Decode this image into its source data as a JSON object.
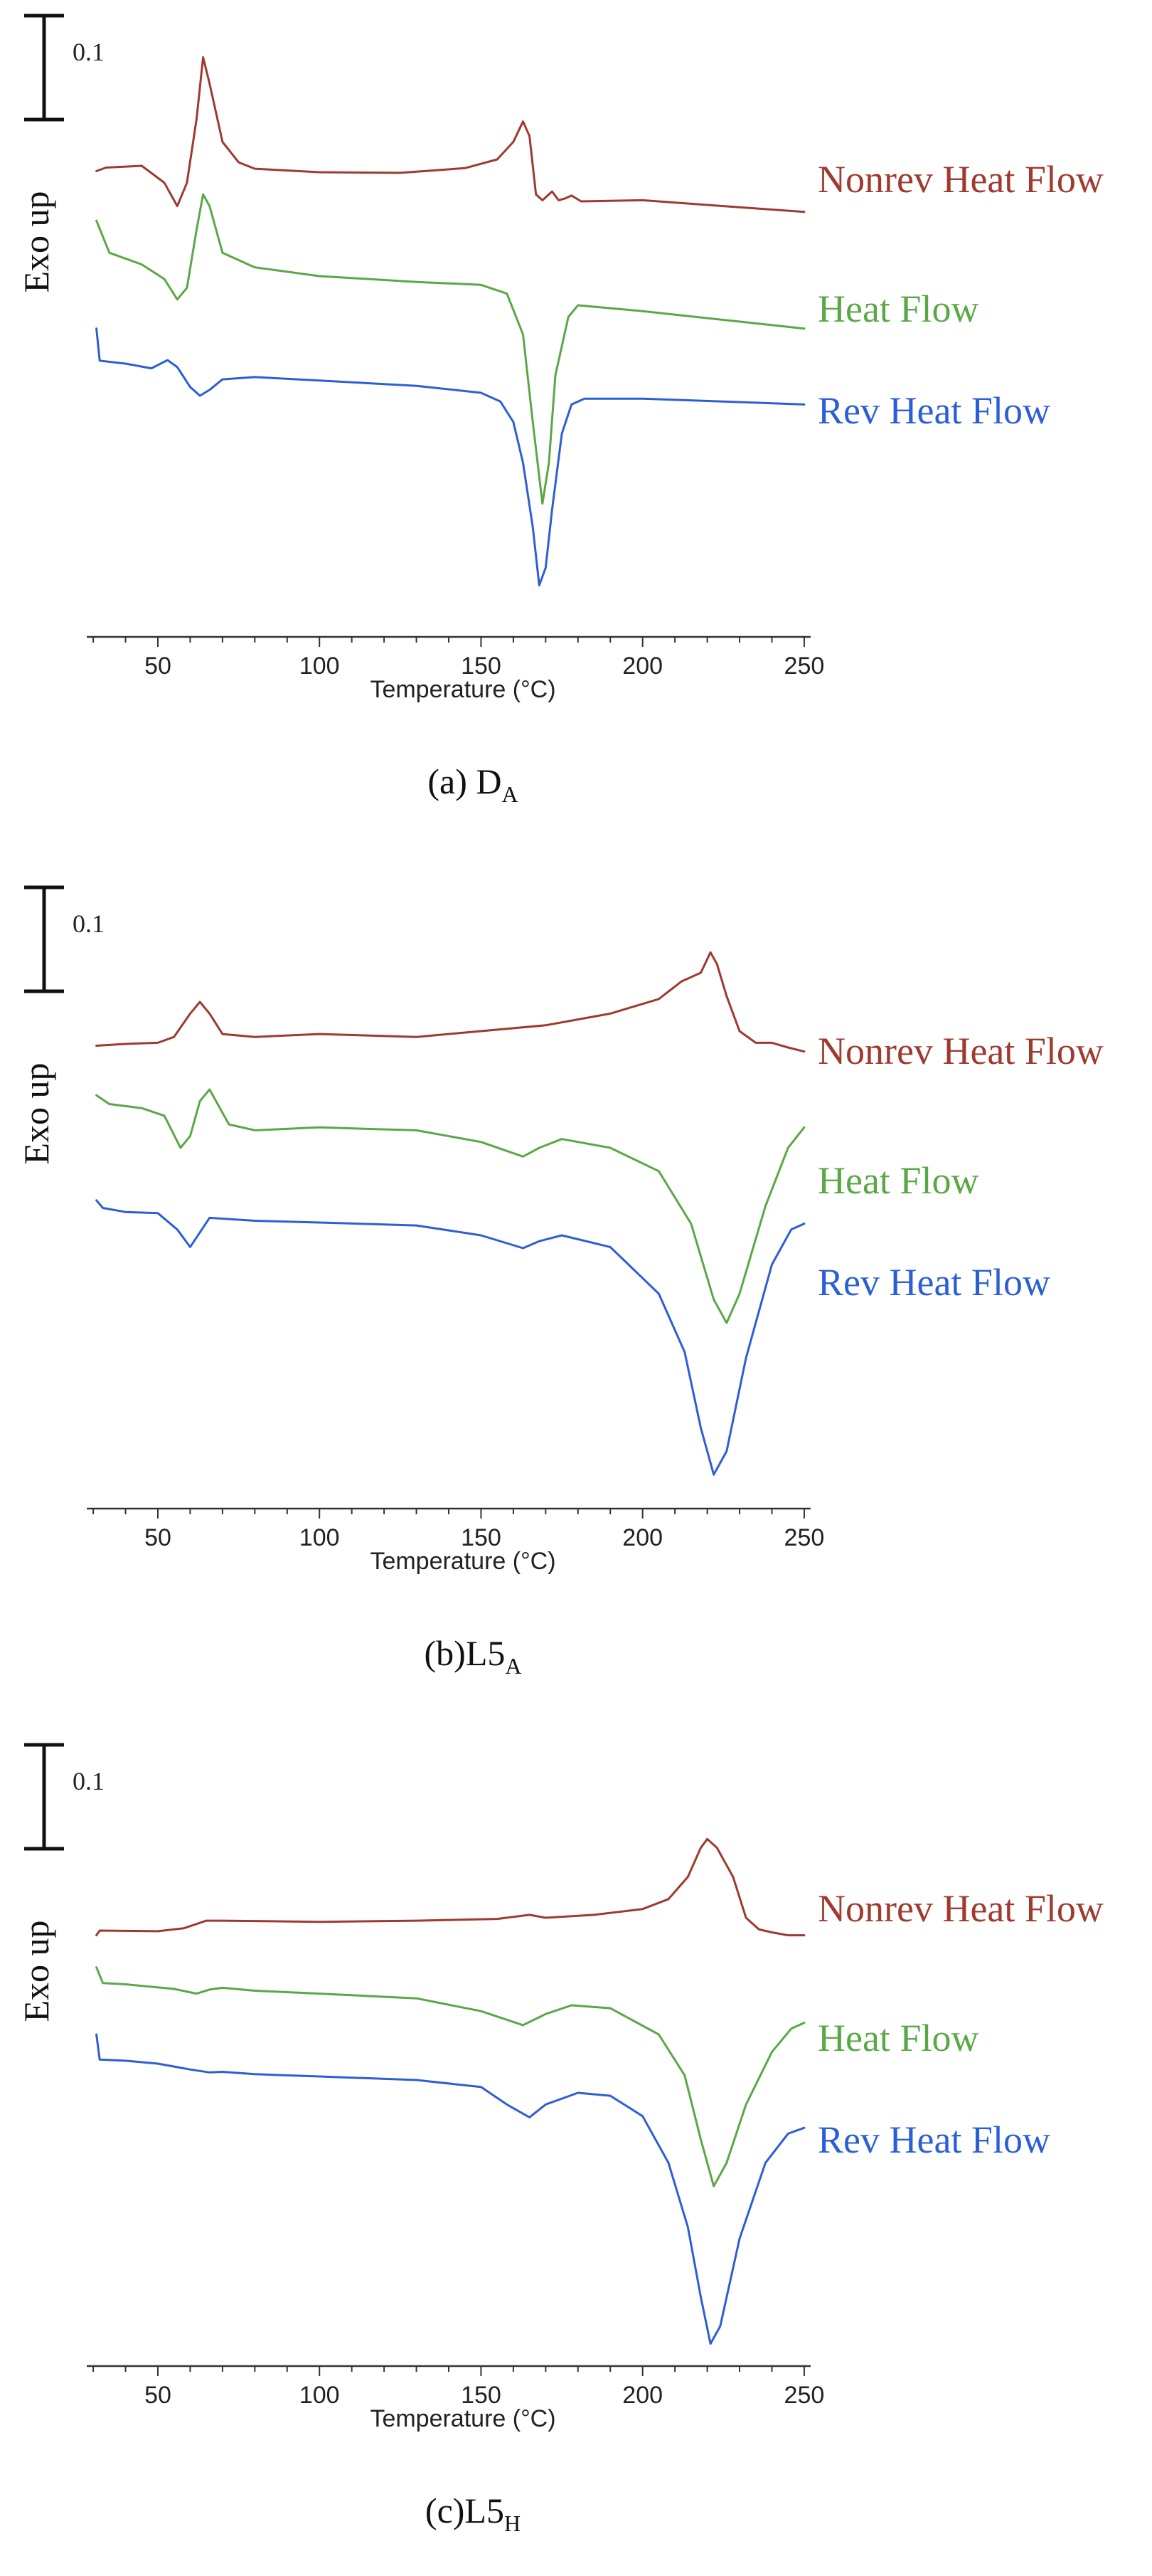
{
  "colors": {
    "nonrev": "#9e3a2e",
    "heat": "#5aa845",
    "rev": "#2c5fd6",
    "axis": "#333333"
  },
  "panels": [
    {
      "caption": {
        "main": "(a) D",
        "sub": "A"
      },
      "scale_label": "0.1",
      "ylabel": "Exo up",
      "chart_data": {
        "type": "line",
        "xlabel": "Temperature (°C)",
        "xlim": [
          28,
          252
        ],
        "ylim": [
          0,
          1
        ],
        "xticks": [
          "50",
          "100",
          "150",
          "200",
          "250"
        ],
        "series": [
          {
            "name": "Nonrev Heat Flow",
            "points": [
              [
                31,
                0.78
              ],
              [
                34,
                0.786
              ],
              [
                45,
                0.789
              ],
              [
                52,
                0.76
              ],
              [
                56,
                0.72
              ],
              [
                59,
                0.76
              ],
              [
                62,
                0.87
              ],
              [
                64,
                0.975
              ],
              [
                66,
                0.93
              ],
              [
                70,
                0.83
              ],
              [
                75,
                0.795
              ],
              [
                80,
                0.784
              ],
              [
                100,
                0.778
              ],
              [
                125,
                0.777
              ],
              [
                145,
                0.785
              ],
              [
                155,
                0.8
              ],
              [
                160,
                0.83
              ],
              [
                163,
                0.865
              ],
              [
                165,
                0.84
              ],
              [
                167,
                0.74
              ],
              [
                169,
                0.73
              ],
              [
                172,
                0.745
              ],
              [
                174,
                0.73
              ],
              [
                176,
                0.733
              ],
              [
                178,
                0.738
              ],
              [
                181,
                0.728
              ],
              [
                200,
                0.73
              ],
              [
                225,
                0.72
              ],
              [
                250,
                0.71
              ]
            ]
          },
          {
            "name": "Heat Flow",
            "points": [
              [
                31,
                0.695
              ],
              [
                35,
                0.64
              ],
              [
                45,
                0.62
              ],
              [
                52,
                0.595
              ],
              [
                56,
                0.56
              ],
              [
                59,
                0.58
              ],
              [
                62,
                0.68
              ],
              [
                64,
                0.74
              ],
              [
                66,
                0.72
              ],
              [
                70,
                0.64
              ],
              [
                80,
                0.615
              ],
              [
                100,
                0.6
              ],
              [
                130,
                0.59
              ],
              [
                150,
                0.585
              ],
              [
                158,
                0.57
              ],
              [
                163,
                0.5
              ],
              [
                166,
                0.35
              ],
              [
                169,
                0.21
              ],
              [
                171,
                0.28
              ],
              [
                173,
                0.43
              ],
              [
                177,
                0.53
              ],
              [
                180,
                0.55
              ],
              [
                200,
                0.54
              ],
              [
                225,
                0.525
              ],
              [
                250,
                0.51
              ]
            ]
          },
          {
            "name": "Rev Heat Flow",
            "points": [
              [
                31,
                0.51
              ],
              [
                32,
                0.455
              ],
              [
                40,
                0.45
              ],
              [
                48,
                0.442
              ],
              [
                53,
                0.456
              ],
              [
                56,
                0.444
              ],
              [
                60,
                0.41
              ],
              [
                63,
                0.395
              ],
              [
                66,
                0.405
              ],
              [
                70,
                0.423
              ],
              [
                80,
                0.427
              ],
              [
                100,
                0.421
              ],
              [
                130,
                0.412
              ],
              [
                150,
                0.4
              ],
              [
                156,
                0.385
              ],
              [
                160,
                0.35
              ],
              [
                163,
                0.28
              ],
              [
                166,
                0.17
              ],
              [
                168,
                0.07
              ],
              [
                170,
                0.1
              ],
              [
                172,
                0.2
              ],
              [
                175,
                0.33
              ],
              [
                178,
                0.38
              ],
              [
                182,
                0.39
              ],
              [
                200,
                0.39
              ],
              [
                225,
                0.385
              ],
              [
                250,
                0.38
              ]
            ]
          }
        ]
      }
    },
    {
      "caption": {
        "main": "(b)L5",
        "sub": "A"
      },
      "scale_label": "0.1",
      "ylabel": "Exo up",
      "chart_data": {
        "type": "line",
        "xlabel": "Temperature (°C)",
        "xlim": [
          28,
          252
        ],
        "ylim": [
          0,
          1
        ],
        "xticks": [
          "50",
          "100",
          "150",
          "200",
          "250"
        ],
        "series": [
          {
            "name": "Nonrev Heat Flow",
            "points": [
              [
                31,
                0.775
              ],
              [
                40,
                0.778
              ],
              [
                50,
                0.78
              ],
              [
                55,
                0.79
              ],
              [
                60,
                0.83
              ],
              [
                63,
                0.85
              ],
              [
                66,
                0.83
              ],
              [
                70,
                0.795
              ],
              [
                80,
                0.79
              ],
              [
                100,
                0.795
              ],
              [
                130,
                0.79
              ],
              [
                150,
                0.8
              ],
              [
                170,
                0.81
              ],
              [
                190,
                0.83
              ],
              [
                205,
                0.855
              ],
              [
                212,
                0.885
              ],
              [
                218,
                0.9
              ],
              [
                221,
                0.935
              ],
              [
                223,
                0.915
              ],
              [
                226,
                0.86
              ],
              [
                230,
                0.8
              ],
              [
                235,
                0.78
              ],
              [
                240,
                0.78
              ],
              [
                245,
                0.772
              ],
              [
                250,
                0.765
              ]
            ]
          },
          {
            "name": "Heat Flow",
            "points": [
              [
                31,
                0.69
              ],
              [
                35,
                0.675
              ],
              [
                45,
                0.668
              ],
              [
                52,
                0.655
              ],
              [
                57,
                0.6
              ],
              [
                60,
                0.62
              ],
              [
                63,
                0.68
              ],
              [
                66,
                0.7
              ],
              [
                68,
                0.68
              ],
              [
                72,
                0.64
              ],
              [
                80,
                0.63
              ],
              [
                100,
                0.635
              ],
              [
                130,
                0.63
              ],
              [
                150,
                0.61
              ],
              [
                163,
                0.585
              ],
              [
                168,
                0.6
              ],
              [
                175,
                0.615
              ],
              [
                190,
                0.6
              ],
              [
                205,
                0.56
              ],
              [
                215,
                0.47
              ],
              [
                222,
                0.34
              ],
              [
                226,
                0.3
              ],
              [
                230,
                0.35
              ],
              [
                238,
                0.5
              ],
              [
                245,
                0.6
              ],
              [
                250,
                0.635
              ]
            ]
          },
          {
            "name": "Rev Heat Flow",
            "points": [
              [
                31,
                0.51
              ],
              [
                33,
                0.497
              ],
              [
                40,
                0.49
              ],
              [
                50,
                0.488
              ],
              [
                56,
                0.46
              ],
              [
                60,
                0.43
              ],
              [
                63,
                0.455
              ],
              [
                66,
                0.48
              ],
              [
                80,
                0.475
              ],
              [
                100,
                0.472
              ],
              [
                130,
                0.467
              ],
              [
                150,
                0.45
              ],
              [
                163,
                0.428
              ],
              [
                168,
                0.44
              ],
              [
                175,
                0.45
              ],
              [
                190,
                0.43
              ],
              [
                205,
                0.35
              ],
              [
                213,
                0.25
              ],
              [
                218,
                0.12
              ],
              [
                222,
                0.04
              ],
              [
                226,
                0.08
              ],
              [
                232,
                0.24
              ],
              [
                240,
                0.4
              ],
              [
                246,
                0.46
              ],
              [
                250,
                0.47
              ]
            ]
          }
        ]
      }
    },
    {
      "caption": {
        "main": "(c)L5",
        "sub": "H"
      },
      "scale_label": "0.1",
      "ylabel": "Exo up",
      "chart_data": {
        "type": "line",
        "xlabel": "Temperature (°C)",
        "xlim": [
          28,
          252
        ],
        "ylim": [
          0,
          1
        ],
        "xticks": [
          "50",
          "100",
          "150",
          "200",
          "250"
        ],
        "series": [
          {
            "name": "Nonrev Heat Flow",
            "points": [
              [
                31,
                0.72
              ],
              [
                32,
                0.728
              ],
              [
                50,
                0.727
              ],
              [
                58,
                0.732
              ],
              [
                65,
                0.745
              ],
              [
                70,
                0.745
              ],
              [
                100,
                0.743
              ],
              [
                130,
                0.745
              ],
              [
                155,
                0.748
              ],
              [
                165,
                0.755
              ],
              [
                170,
                0.75
              ],
              [
                185,
                0.755
              ],
              [
                200,
                0.765
              ],
              [
                208,
                0.782
              ],
              [
                214,
                0.82
              ],
              [
                218,
                0.87
              ],
              [
                220,
                0.885
              ],
              [
                223,
                0.87
              ],
              [
                228,
                0.82
              ],
              [
                232,
                0.75
              ],
              [
                236,
                0.73
              ],
              [
                240,
                0.725
              ],
              [
                245,
                0.72
              ],
              [
                250,
                0.72
              ]
            ]
          },
          {
            "name": "Heat Flow",
            "points": [
              [
                31,
                0.665
              ],
              [
                33,
                0.638
              ],
              [
                40,
                0.636
              ],
              [
                55,
                0.628
              ],
              [
                62,
                0.62
              ],
              [
                66,
                0.627
              ],
              [
                70,
                0.63
              ],
              [
                80,
                0.625
              ],
              [
                100,
                0.62
              ],
              [
                130,
                0.612
              ],
              [
                150,
                0.59
              ],
              [
                163,
                0.566
              ],
              [
                170,
                0.585
              ],
              [
                178,
                0.6
              ],
              [
                190,
                0.595
              ],
              [
                205,
                0.55
              ],
              [
                213,
                0.48
              ],
              [
                218,
                0.37
              ],
              [
                222,
                0.29
              ],
              [
                226,
                0.33
              ],
              [
                232,
                0.43
              ],
              [
                240,
                0.52
              ],
              [
                246,
                0.56
              ],
              [
                250,
                0.57
              ]
            ]
          },
          {
            "name": "Rev Heat Flow",
            "points": [
              [
                31,
                0.55
              ],
              [
                32,
                0.507
              ],
              [
                40,
                0.505
              ],
              [
                50,
                0.5
              ],
              [
                60,
                0.49
              ],
              [
                66,
                0.485
              ],
              [
                70,
                0.486
              ],
              [
                80,
                0.482
              ],
              [
                100,
                0.478
              ],
              [
                130,
                0.472
              ],
              [
                150,
                0.46
              ],
              [
                158,
                0.43
              ],
              [
                165,
                0.408
              ],
              [
                170,
                0.43
              ],
              [
                180,
                0.45
              ],
              [
                190,
                0.445
              ],
              [
                200,
                0.41
              ],
              [
                208,
                0.33
              ],
              [
                214,
                0.22
              ],
              [
                218,
                0.1
              ],
              [
                221,
                0.02
              ],
              [
                224,
                0.05
              ],
              [
                230,
                0.2
              ],
              [
                238,
                0.33
              ],
              [
                245,
                0.38
              ],
              [
                250,
                0.39
              ]
            ]
          }
        ]
      }
    }
  ]
}
